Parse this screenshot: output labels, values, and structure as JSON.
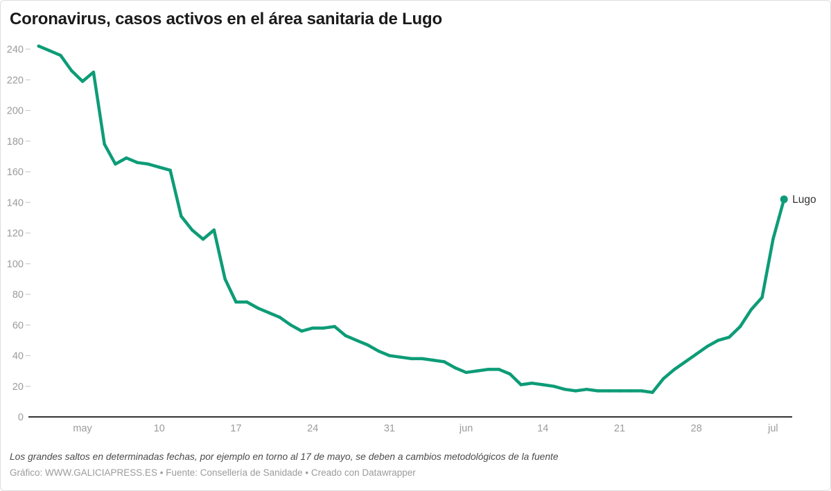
{
  "header": {
    "title": "Coronavirus, casos activos en el área sanitaria de Lugo"
  },
  "chart_data": {
    "type": "line",
    "title": "Coronavirus, casos activos en el área sanitaria de Lugo",
    "xlabel": "",
    "ylabel": "",
    "ylim": [
      0,
      240
    ],
    "y_ticks": [
      0,
      20,
      40,
      60,
      80,
      100,
      120,
      140,
      160,
      180,
      200,
      220,
      240
    ],
    "grid": "none",
    "legend_position": "end-of-line-label",
    "x_tick_labels": [
      {
        "index": 4,
        "label": "may"
      },
      {
        "index": 11,
        "label": "10"
      },
      {
        "index": 18,
        "label": "17"
      },
      {
        "index": 25,
        "label": "24"
      },
      {
        "index": 32,
        "label": "31"
      },
      {
        "index": 39,
        "label": "jun"
      },
      {
        "index": 46,
        "label": "14"
      },
      {
        "index": 53,
        "label": "21"
      },
      {
        "index": 60,
        "label": "28"
      },
      {
        "index": 67,
        "label": "jul"
      }
    ],
    "series": [
      {
        "name": "Lugo",
        "color": "#0d9c77",
        "values": [
          242,
          239,
          236,
          226,
          219,
          225,
          178,
          165,
          169,
          166,
          165,
          163,
          161,
          131,
          122,
          116,
          122,
          90,
          75,
          75,
          71,
          68,
          65,
          60,
          56,
          58,
          58,
          59,
          53,
          50,
          47,
          43,
          40,
          39,
          38,
          38,
          37,
          36,
          32,
          29,
          30,
          31,
          31,
          28,
          21,
          22,
          21,
          20,
          18,
          17,
          18,
          17,
          17,
          17,
          17,
          17,
          16,
          25,
          31,
          36,
          41,
          46,
          50,
          52,
          59,
          70,
          78,
          116,
          142
        ]
      }
    ],
    "colors": {
      "axis_label": "#9b9b9b",
      "tick_dash": "#cccccc",
      "baseline": "#333333",
      "series_label": "#333333",
      "title": "#1a1a1a"
    }
  },
  "footer": {
    "note": "Los grandes saltos en determinadas fechas, por ejemplo en torno al 17 de mayo, se deben a cambios metodológicos de la fuente",
    "credit": "Gráfico: WWW.GALICIAPRESS.ES • Fuente: Consellería de Sanidade • Creado con Datawrapper"
  }
}
